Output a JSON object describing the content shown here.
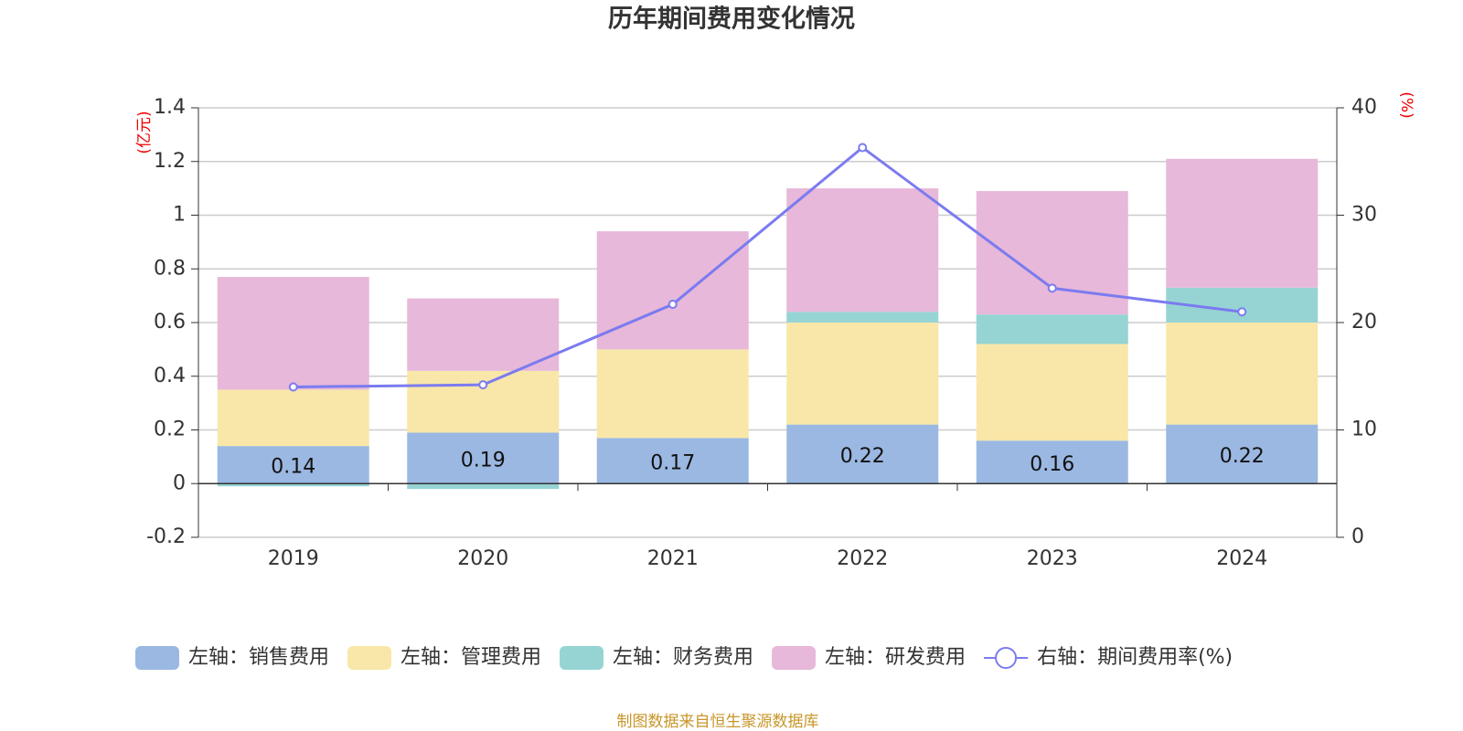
{
  "chart_data": {
    "type": "bar-line",
    "title": "历年期间费用变化情况",
    "y_label": "(亿元)",
    "y2_label": "(%)",
    "source": "制图数据来自恒生聚源数据库",
    "categories": [
      "2019",
      "2020",
      "2021",
      "2022",
      "2023",
      "2024"
    ],
    "series": [
      {
        "name": "左轴：销售费用",
        "type": "bar",
        "color": "#9bb8e2",
        "values": [
          0.14,
          0.19,
          0.17,
          0.22,
          0.16,
          0.22
        ],
        "show_labels": true
      },
      {
        "name": "左轴：管理费用",
        "type": "bar",
        "color": "#f8e7a8",
        "values": [
          0.21,
          0.23,
          0.33,
          0.38,
          0.36,
          0.38
        ]
      },
      {
        "name": "左轴：财务费用",
        "type": "bar",
        "color": "#96d4d4",
        "values": [
          -0.01,
          -0.02,
          0,
          0.04,
          0.11,
          0.13
        ]
      },
      {
        "name": "左轴：研发费用",
        "type": "bar",
        "color": "#e7b8d9",
        "values": [
          0.42,
          0.27,
          0.44,
          0.46,
          0.46,
          0.48
        ]
      },
      {
        "name": "右轴：期间费用率(%)",
        "type": "line",
        "axis": "y2",
        "color": "#7b7bf0",
        "values": [
          14.0,
          14.2,
          21.7,
          36.3,
          23.2,
          21.0
        ]
      }
    ],
    "ylim": [
      -0.2,
      1.4
    ],
    "yticks": [
      -0.2,
      0,
      0.2,
      0.4,
      0.6,
      0.8,
      1,
      1.2,
      1.4
    ],
    "y2lim": [
      0,
      40
    ],
    "y2ticks": [
      0,
      10,
      20,
      30,
      40
    ],
    "grid": true,
    "legend": "bottom"
  }
}
